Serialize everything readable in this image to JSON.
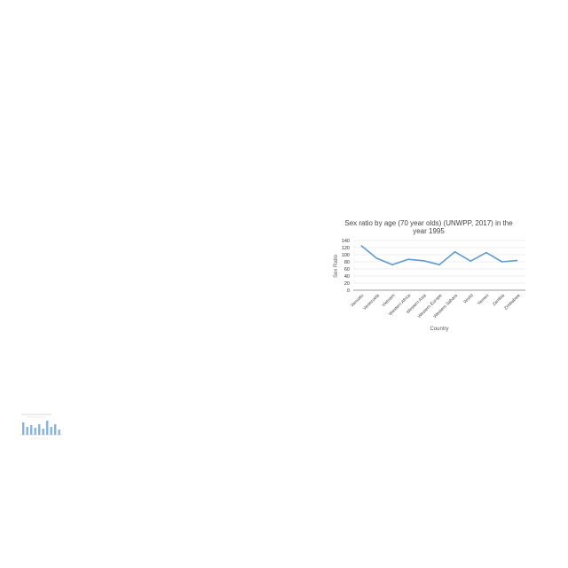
{
  "chart_data": {
    "type": "line",
    "title": "Sex ratio by age (70 year olds) (UNWPP, 2017) in the year 1995",
    "title_lines": [
      "Sex ratio by age (70 year olds) (UNWPP, 2017) in the",
      "year 1995"
    ],
    "xlabel": "Country",
    "ylabel": "Sex Ratio",
    "ylim": [
      0,
      140
    ],
    "yticks": [
      0,
      20,
      40,
      60,
      80,
      100,
      120,
      140
    ],
    "grid": true,
    "legend": "none",
    "categories": [
      "Vanuatu",
      "Venezuela",
      "Vietnam",
      "Western Africa",
      "Western Asia",
      "Western Europe",
      "Western Sahara",
      "World",
      "Yemen",
      "Zambia",
      "Zimbabwe"
    ],
    "series": [
      {
        "values": [
          126,
          90,
          72,
          87,
          83,
          72,
          108,
          82,
          106,
          80,
          84
        ],
        "color": "#5b9bd5"
      }
    ]
  },
  "thumbnail": {
    "type": "bar",
    "bar_color": "#5b9bd5"
  }
}
